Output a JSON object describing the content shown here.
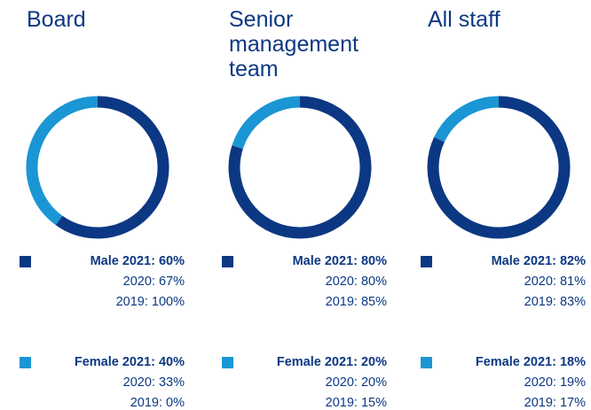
{
  "chart_data": [
    {
      "type": "pie",
      "title": "Board",
      "values": [
        60,
        40
      ],
      "colors": [
        "#0c3883",
        "#1b96d4"
      ],
      "value_labels": [
        "Male 2021: 60%",
        "Female 2021: 40%"
      ],
      "history": [
        [
          {
            "value": 67,
            "label": "2020: 67%"
          },
          {
            "value": 100,
            "label": "2019: 100%"
          }
        ],
        [
          {
            "value": 33,
            "label": "2020: 33%"
          },
          {
            "value": 0,
            "label": "2019: 0%"
          }
        ]
      ]
    },
    {
      "type": "pie",
      "title": "Senior management team",
      "values": [
        80,
        20
      ],
      "colors": [
        "#0c3883",
        "#1b96d4"
      ],
      "value_labels": [
        "Male 2021: 80%",
        "Female 2021: 20%"
      ],
      "history": [
        [
          {
            "value": 80,
            "label": "2020: 80%"
          },
          {
            "value": 85,
            "label": "2019: 85%"
          }
        ],
        [
          {
            "value": 20,
            "label": "2020: 20%"
          },
          {
            "value": 15,
            "label": "2019: 15%"
          }
        ]
      ]
    },
    {
      "type": "pie",
      "title": "All staff",
      "values": [
        82,
        18
      ],
      "colors": [
        "#0c3883",
        "#1b96d4"
      ],
      "value_labels": [
        "Male 2021: 82%",
        "Female 2021: 18%"
      ],
      "history": [
        [
          {
            "value": 81,
            "label": "2020: 81%"
          },
          {
            "value": 83,
            "label": "2019: 83%"
          }
        ],
        [
          {
            "value": 19,
            "label": "2020: 19%"
          },
          {
            "value": 17,
            "label": "2019: 17%"
          }
        ]
      ]
    }
  ]
}
